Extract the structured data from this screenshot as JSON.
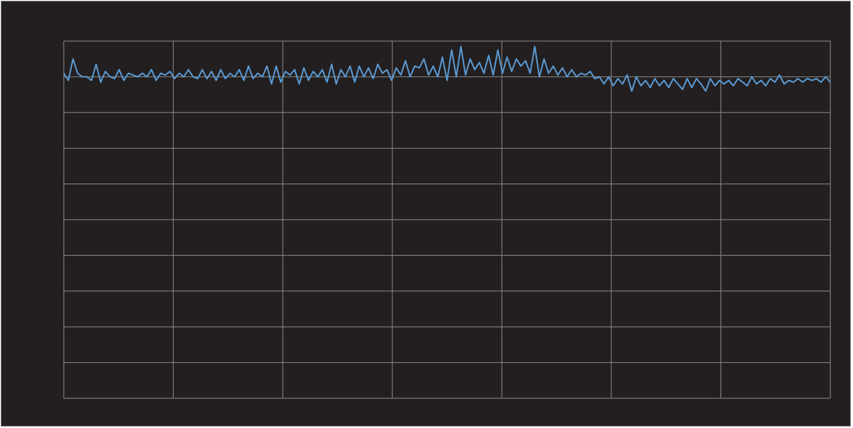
{
  "chart_data": {
    "type": "line",
    "color": "#5b9bd5",
    "xlim": [
      0,
      7
    ],
    "xticks": [
      0,
      1,
      2,
      3,
      4,
      5,
      6,
      7
    ],
    "ylim": [
      0,
      10
    ],
    "yticks": [
      0,
      1,
      2,
      3,
      4,
      5,
      6,
      7,
      8,
      9,
      10
    ],
    "grid": true,
    "values": [
      9.1,
      8.9,
      9.5,
      9.1,
      9.0,
      9.0,
      8.9,
      9.35,
      8.85,
      9.15,
      9.0,
      8.95,
      9.2,
      8.9,
      9.1,
      9.05,
      9.0,
      9.1,
      9.0,
      9.2,
      8.9,
      9.1,
      9.05,
      9.15,
      8.95,
      9.1,
      9.0,
      9.2,
      9.0,
      8.95,
      9.2,
      8.95,
      9.15,
      8.9,
      9.2,
      8.95,
      9.1,
      9.0,
      9.2,
      8.9,
      9.3,
      8.95,
      9.1,
      9.0,
      9.3,
      8.8,
      9.3,
      8.85,
      9.15,
      9.05,
      9.2,
      8.8,
      9.25,
      8.9,
      9.15,
      9.0,
      9.2,
      8.85,
      9.35,
      8.8,
      9.2,
      9.0,
      9.3,
      8.85,
      9.3,
      9.0,
      9.25,
      8.95,
      9.35,
      9.1,
      9.2,
      8.9,
      9.25,
      9.05,
      9.45,
      9.0,
      9.3,
      9.25,
      9.5,
      9.05,
      9.3,
      9.0,
      9.55,
      8.9,
      9.75,
      9.0,
      9.85,
      9.05,
      9.5,
      9.2,
      9.4,
      9.1,
      9.6,
      9.05,
      9.75,
      9.1,
      9.55,
      9.15,
      9.5,
      9.3,
      9.45,
      9.1,
      9.85,
      9.0,
      9.5,
      9.1,
      9.3,
      9.05,
      9.25,
      9.0,
      9.2,
      9.0,
      9.1,
      9.05,
      9.15,
      8.95,
      9.0,
      8.8,
      9.0,
      8.75,
      8.95,
      8.8,
      9.05,
      8.6,
      9.0,
      8.75,
      8.9,
      8.7,
      8.95,
      8.75,
      8.9,
      8.7,
      8.95,
      8.8,
      8.65,
      8.95,
      8.7,
      8.95,
      8.8,
      8.6,
      8.95,
      8.75,
      8.9,
      8.8,
      8.9,
      8.75,
      8.95,
      8.85,
      8.75,
      9.0,
      8.8,
      8.9,
      8.75,
      8.95,
      8.85,
      9.05,
      8.8,
      8.9,
      8.85,
      8.95,
      8.85,
      8.95,
      8.9,
      8.95,
      8.85,
      9.0,
      8.85
    ]
  }
}
